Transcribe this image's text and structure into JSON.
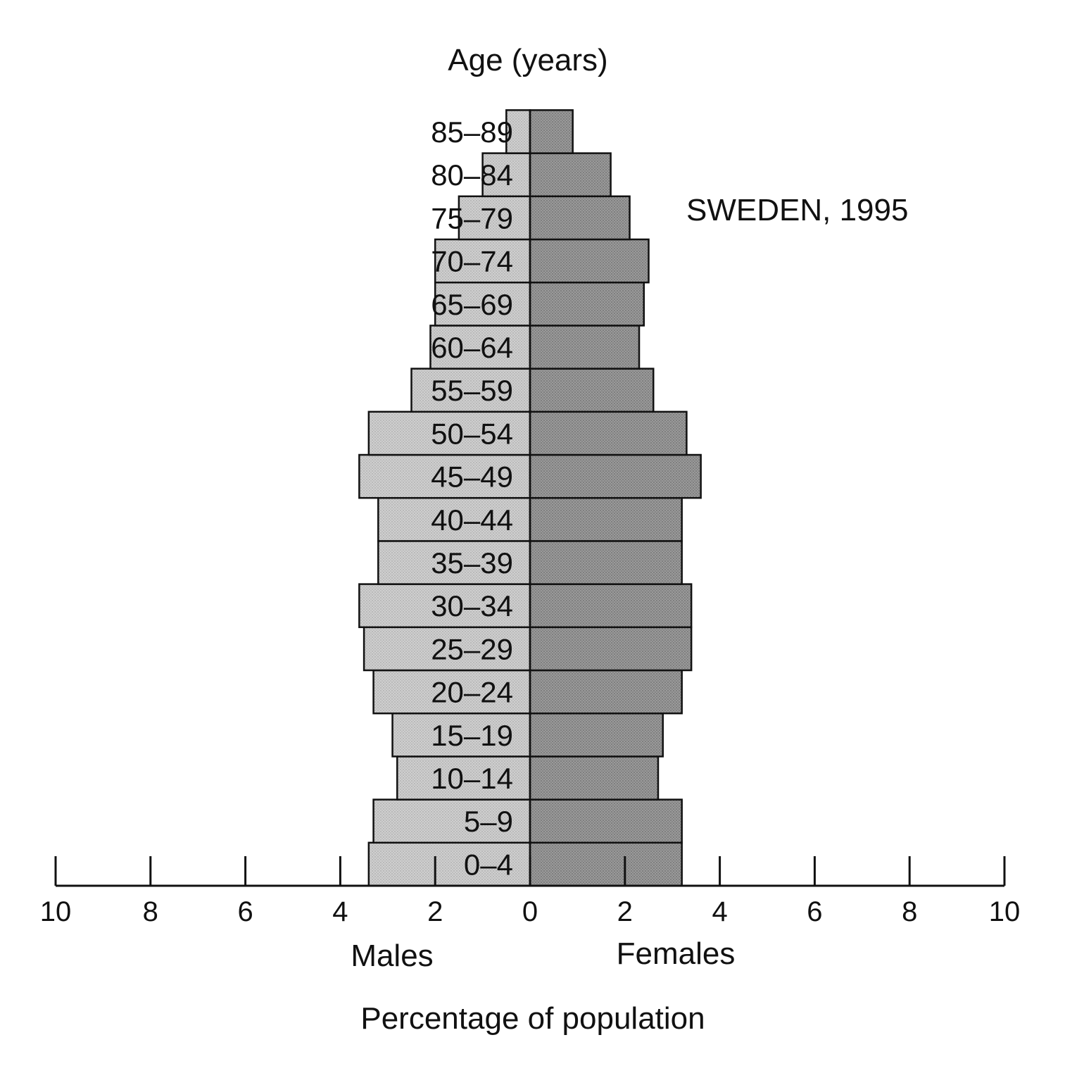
{
  "chart_data": {
    "type": "bar",
    "title": "SWEDEN, 1995",
    "age_axis_label": "Age (years)",
    "xlabel": "Percentage of population",
    "left_side_label": "Males",
    "right_side_label": "Females",
    "xlim": [
      -10,
      10
    ],
    "x_ticks": [
      -10,
      -8,
      -6,
      -4,
      -2,
      0,
      2,
      4,
      6,
      8,
      10
    ],
    "x_tick_labels": [
      "10",
      "8",
      "6",
      "4",
      "2",
      "0",
      "2",
      "4",
      "6",
      "8",
      "10"
    ],
    "categories": [
      "0–4",
      "5–9",
      "10–14",
      "15–19",
      "20–24",
      "25–29",
      "30–34",
      "35–39",
      "40–44",
      "45–49",
      "50–54",
      "55–59",
      "60–64",
      "65–69",
      "70–74",
      "75–79",
      "80–84",
      "85–89"
    ],
    "series": [
      {
        "name": "Males",
        "color": "#c8c8c8",
        "values": [
          3.4,
          3.3,
          2.8,
          2.9,
          3.3,
          3.5,
          3.6,
          3.2,
          3.2,
          3.6,
          3.4,
          2.5,
          2.1,
          2.0,
          2.0,
          1.5,
          1.0,
          0.5
        ]
      },
      {
        "name": "Females",
        "color": "#8f8f8f",
        "values": [
          3.2,
          3.2,
          2.7,
          2.8,
          3.2,
          3.4,
          3.4,
          3.2,
          3.2,
          3.6,
          3.3,
          2.6,
          2.3,
          2.4,
          2.5,
          2.1,
          1.7,
          0.9
        ]
      }
    ]
  }
}
